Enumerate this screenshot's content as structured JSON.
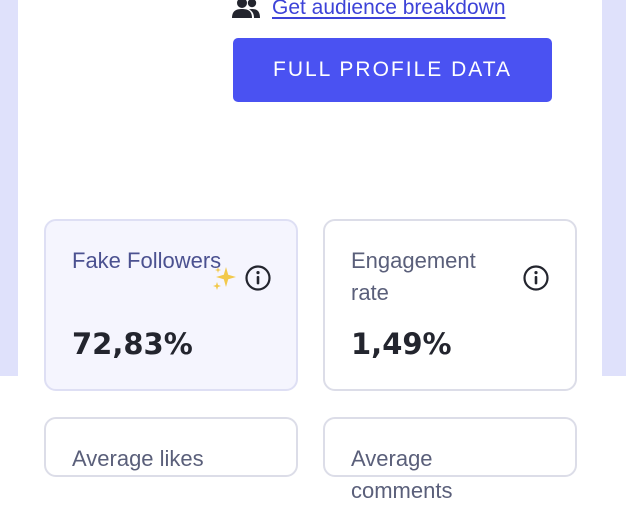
{
  "profile": {
    "audience_link_label": "Get audience breakdown",
    "audience_icon": "people-icon",
    "full_profile_button": "FULL PROFILE DATA"
  },
  "metrics": [
    {
      "title": "Fake Followers",
      "value": "72,83%",
      "icons": [
        "sparkle-icon",
        "info-icon"
      ],
      "highlighted": true
    },
    {
      "title": "Engagement rate",
      "value": "1,49%",
      "icons": [
        "info-icon"
      ],
      "highlighted": false
    },
    {
      "title": "Average likes",
      "value": "",
      "icons": [],
      "highlighted": false
    },
    {
      "title": "Average comments",
      "value": "",
      "icons": [],
      "highlighted": false
    }
  ],
  "colors": {
    "accent": "#4a52f2",
    "link": "#3d43d8",
    "page_background": "#dfe1fb",
    "highlight_card": "#f5f5fe",
    "sparkle": "#f2c94c"
  }
}
